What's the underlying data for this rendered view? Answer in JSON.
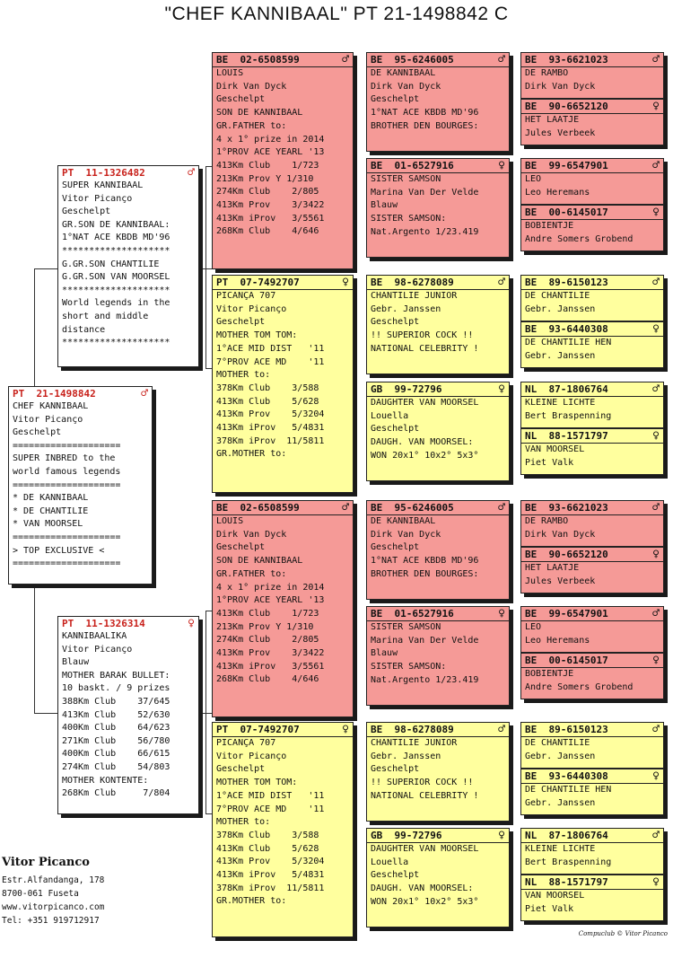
{
  "title": "\"CHEF KANNIBAAL\"  PT  21-1498842 C",
  "cards": [
    {
      "id": "subject",
      "color": "white",
      "country": "PT",
      "ring": "21-1498842",
      "sex": "♂",
      "lines": [
        "CHEF KANNIBAAL",
        "Vitor Picanço",
        "Geschelpt",
        "====================",
        "SUPER INBRED to the",
        "world famous legends",
        "====================",
        "* DE KANNIBAAL",
        "* DE CHANTILIE",
        "* VAN MOORSEL",
        "====================",
        "> TOP EXCLUSIVE <",
        "===================="
      ]
    },
    {
      "id": "father",
      "color": "white",
      "country": "PT",
      "ring": "11-1326482",
      "sex": "♂",
      "lines": [
        "SUPER KANNIBAAL",
        "Vitor Picanço",
        "Geschelpt",
        "GR.SON DE KANNIBAAL:",
        "1°NAT ACE KBDB MD'96",
        "********************",
        "G.GR.SON CHANTILIE",
        "G.GR.SON VAN MOORSEL",
        "********************",
        "World legends in the",
        "short and middle",
        "distance",
        "********************"
      ]
    },
    {
      "id": "mother",
      "color": "white",
      "country": "PT",
      "ring": "11-1326314",
      "sex": "♀",
      "lines": [
        "KANNIBAALIKA",
        "Vitor Picanço",
        "Blauw",
        "MOTHER BARAK BULLET:",
        "10 baskt. / 9 prizes",
        "388Km Club    37/645",
        "413Km Club    52/630",
        "400Km Club    64/623",
        "271Km Club    56/780",
        "400Km Club    66/615",
        "274Km Club    54/803",
        "MOTHER KONTENTE:",
        "268Km Club     7/804"
      ]
    },
    {
      "id": "ff",
      "color": "red",
      "country": "BE",
      "ring": "02-6508599",
      "sex": "♂",
      "lines": [
        "LOUIS",
        "Dirk Van Dyck",
        "Geschelpt",
        "SON DE KANNIBAAL",
        "GR.FATHER to:",
        "4 x 1° prize in 2014",
        "1°PROV ACE YEARL '13",
        "413Km Club    1/723",
        "213Km Prov Y 1/310",
        "274Km Club    2/805",
        "413Km Prov    3/3422",
        "413Km iProv   3/5561",
        "268Km Club    4/646"
      ]
    },
    {
      "id": "fm",
      "color": "yellow",
      "country": "PT",
      "ring": "07-7492707",
      "sex": "♀",
      "lines": [
        "PICANÇA 707",
        "Vitor Picanço",
        "Geschelpt",
        "MOTHER TOM TOM:",
        "1°ACE MID DIST   '11",
        "7°PROV ACE MD    '11",
        "MOTHER to:",
        "378Km Club    3/588",
        "413Km Club    5/628",
        "413Km Prov    5/3204",
        "413Km iProv   5/4831",
        "378Km iProv  11/5811",
        "GR.MOTHER to:"
      ]
    },
    {
      "id": "mf",
      "color": "red",
      "country": "BE",
      "ring": "02-6508599",
      "sex": "♂",
      "lines": [
        "LOUIS",
        "Dirk Van Dyck",
        "Geschelpt",
        "SON DE KANNIBAAL",
        "GR.FATHER to:",
        "4 x 1° prize in 2014",
        "1°PROV ACE YEARL '13",
        "413Km Club    1/723",
        "213Km Prov Y 1/310",
        "274Km Club    2/805",
        "413Km Prov    3/3422",
        "413Km iProv   3/5561",
        "268Km Club    4/646"
      ]
    },
    {
      "id": "mm",
      "color": "yellow",
      "country": "PT",
      "ring": "07-7492707",
      "sex": "♀",
      "lines": [
        "PICANÇA 707",
        "Vitor Picanço",
        "Geschelpt",
        "MOTHER TOM TOM:",
        "1°ACE MID DIST   '11",
        "7°PROV ACE MD    '11",
        "MOTHER to:",
        "378Km Club    3/588",
        "413Km Club    5/628",
        "413Km Prov    5/3204",
        "413Km iProv   5/4831",
        "378Km iProv  11/5811",
        "GR.MOTHER to:"
      ]
    },
    {
      "id": "fff",
      "color": "red",
      "country": "BE",
      "ring": "95-6246005",
      "sex": "♂",
      "lines": [
        "DE KANNIBAAL",
        "Dirk Van Dyck",
        "Geschelpt",
        "1°NAT ACE KBDB MD'96",
        "BROTHER DEN BOURGES:"
      ]
    },
    {
      "id": "ffm",
      "color": "red",
      "country": "BE",
      "ring": "01-6527916",
      "sex": "♀",
      "lines": [
        "SISTER SAMSON",
        "Marina Van Der Velde",
        "Blauw",
        "SISTER SAMSON:",
        "Nat.Argento 1/23.419"
      ]
    },
    {
      "id": "fmf",
      "color": "yellow",
      "country": "BE",
      "ring": "98-6278089",
      "sex": "♂",
      "lines": [
        "CHANTILIE JUNIOR",
        "Gebr. Janssen",
        "Geschelpt",
        "!! SUPERIOR COCK !!",
        "NATIONAL CELEBRITY !"
      ]
    },
    {
      "id": "fmm",
      "color": "yellow",
      "country": "GB",
      "ring": "99-72796",
      "sex": "♀",
      "lines": [
        "DAUGHTER VAN MOORSEL",
        "Louella",
        "Geschelpt",
        "DAUGH. VAN MOORSEL:",
        "WON 20x1° 10x2° 5x3°"
      ]
    },
    {
      "id": "mff",
      "color": "red",
      "country": "BE",
      "ring": "95-6246005",
      "sex": "♂",
      "lines": [
        "DE KANNIBAAL",
        "Dirk Van Dyck",
        "Geschelpt",
        "1°NAT ACE KBDB MD'96",
        "BROTHER DEN BOURGES:"
      ]
    },
    {
      "id": "mfm",
      "color": "red",
      "country": "BE",
      "ring": "01-6527916",
      "sex": "♀",
      "lines": [
        "SISTER SAMSON",
        "Marina Van Der Velde",
        "Blauw",
        "SISTER SAMSON:",
        "Nat.Argento 1/23.419"
      ]
    },
    {
      "id": "mmf",
      "color": "yellow",
      "country": "BE",
      "ring": "98-6278089",
      "sex": "♂",
      "lines": [
        "CHANTILIE JUNIOR",
        "Gebr. Janssen",
        "Geschelpt",
        "!! SUPERIOR COCK !!",
        "NATIONAL CELEBRITY !"
      ]
    },
    {
      "id": "mmm",
      "color": "yellow",
      "country": "GB",
      "ring": "99-72796",
      "sex": "♀",
      "lines": [
        "DAUGHTER VAN MOORSEL",
        "Louella",
        "Geschelpt",
        "DAUGH. VAN MOORSEL:",
        "WON 20x1° 10x2° 5x3°"
      ]
    },
    {
      "id": "g1",
      "color": "red",
      "country": "BE",
      "ring": "93-6621023",
      "sex": "♂",
      "lines": [
        "DE RAMBO",
        "Dirk Van Dyck"
      ]
    },
    {
      "id": "g2",
      "color": "red",
      "country": "BE",
      "ring": "90-6652120",
      "sex": "♀",
      "lines": [
        "HET LAATJE",
        "Jules Verbeek"
      ]
    },
    {
      "id": "g3",
      "color": "red",
      "country": "BE",
      "ring": "99-6547901",
      "sex": "♂",
      "lines": [
        "LEO",
        "Leo Heremans"
      ]
    },
    {
      "id": "g4",
      "color": "red",
      "country": "BE",
      "ring": "00-6145017",
      "sex": "♀",
      "lines": [
        "BOBIENTJE",
        "Andre Somers Grobend"
      ]
    },
    {
      "id": "g5",
      "color": "yellow",
      "country": "BE",
      "ring": "89-6150123",
      "sex": "♂",
      "lines": [
        "DE CHANTILIE",
        "Gebr. Janssen"
      ]
    },
    {
      "id": "g6",
      "color": "yellow",
      "country": "BE",
      "ring": "93-6440308",
      "sex": "♀",
      "lines": [
        "DE CHANTILIE HEN",
        "Gebr. Janssen"
      ]
    },
    {
      "id": "g7",
      "color": "yellow",
      "country": "NL",
      "ring": "87-1806764",
      "sex": "♂",
      "lines": [
        "KLEINE LICHTE",
        "Bert Braspenning"
      ]
    },
    {
      "id": "g8",
      "color": "yellow",
      "country": "NL",
      "ring": "88-1571797",
      "sex": "♀",
      "lines": [
        "VAN MOORSEL",
        "Piet Valk"
      ]
    },
    {
      "id": "g9",
      "color": "red",
      "country": "BE",
      "ring": "93-6621023",
      "sex": "♂",
      "lines": [
        "DE RAMBO",
        "Dirk Van Dyck"
      ]
    },
    {
      "id": "g10",
      "color": "red",
      "country": "BE",
      "ring": "90-6652120",
      "sex": "♀",
      "lines": [
        "HET LAATJE",
        "Jules Verbeek"
      ]
    },
    {
      "id": "g11",
      "color": "red",
      "country": "BE",
      "ring": "99-6547901",
      "sex": "♂",
      "lines": [
        "LEO",
        "Leo Heremans"
      ]
    },
    {
      "id": "g12",
      "color": "red",
      "country": "BE",
      "ring": "00-6145017",
      "sex": "♀",
      "lines": [
        "BOBIENTJE",
        "Andre Somers Grobend"
      ]
    },
    {
      "id": "g13",
      "color": "yellow",
      "country": "BE",
      "ring": "89-6150123",
      "sex": "♂",
      "lines": [
        "DE CHANTILIE",
        "Gebr. Janssen"
      ]
    },
    {
      "id": "g14",
      "color": "yellow",
      "country": "BE",
      "ring": "93-6440308",
      "sex": "♀",
      "lines": [
        "DE CHANTILIE HEN",
        "Gebr. Janssen"
      ]
    },
    {
      "id": "g15",
      "color": "yellow",
      "country": "NL",
      "ring": "87-1806764",
      "sex": "♂",
      "lines": [
        "KLEINE LICHTE",
        "Bert Braspenning"
      ]
    },
    {
      "id": "g16",
      "color": "yellow",
      "country": "NL",
      "ring": "88-1571797",
      "sex": "♀",
      "lines": [
        "VAN MOORSEL",
        "Piet Valk"
      ]
    }
  ],
  "breeder": {
    "name": "Vitor Picanco",
    "lines": [
      "Estr.Alfandanga, 178",
      "8700-061 Fuseta",
      "www.vitorpicanco.com",
      "Tel: +351 919712917"
    ]
  },
  "footer": "Compuclub © Vitor Picanco",
  "colors": {
    "red": "#f59a97",
    "yellow": "#ffff9e",
    "ring_red": "#c8211b"
  }
}
